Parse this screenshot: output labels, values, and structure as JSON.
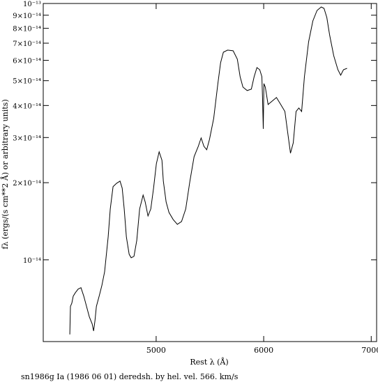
{
  "chart_data": {
    "type": "line",
    "x_label": "Rest λ (Å)",
    "y_label": "fλ (ergs/(s cm**2 Å) or arbitrary units)",
    "caption": "sn1986g Ia (1986 06 01) deredsh. by hel. vel.   566. km/s",
    "color": "#000000",
    "log_y": true,
    "xlim": [
      3950,
      7050
    ],
    "ylim": [
      4.8e-15,
      1e-13
    ],
    "xticks": [
      5000,
      6000,
      7000
    ],
    "yticks": [
      {
        "value": 1e-14,
        "label": "10⁻¹⁴"
      },
      {
        "value": 2e-14,
        "label": "2×10⁻¹⁴"
      },
      {
        "value": 3e-14,
        "label": "3×10⁻¹⁴"
      },
      {
        "value": 4e-14,
        "label": "4×10⁻¹⁴"
      },
      {
        "value": 5e-14,
        "label": "5×10⁻¹⁴"
      },
      {
        "value": 6e-14,
        "label": "6×10⁻¹⁴"
      },
      {
        "value": 7e-14,
        "label": "7×10⁻¹⁴"
      },
      {
        "value": 8e-14,
        "label": "8×10⁻¹⁴"
      },
      {
        "value": 9e-14,
        "label": "9×10⁻¹⁴"
      },
      {
        "value": 1e-13,
        "label": "10⁻¹³"
      }
    ],
    "x": [
      4197,
      4203,
      4216,
      4229,
      4249,
      4275,
      4301,
      4327,
      4353,
      4379,
      4405,
      4418,
      4431,
      4444,
      4470,
      4495,
      4521,
      4554,
      4573,
      4599,
      4632,
      4664,
      4684,
      4703,
      4723,
      4749,
      4768,
      4794,
      4820,
      4846,
      4879,
      4898,
      4924,
      4950,
      4976,
      5002,
      5028,
      5054,
      5067,
      5093,
      5119,
      5158,
      5197,
      5236,
      5275,
      5314,
      5353,
      5392,
      5418,
      5444,
      5470,
      5496,
      5535,
      5574,
      5599,
      5625,
      5664,
      5716,
      5755,
      5781,
      5807,
      5846,
      5885,
      5911,
      5937,
      5963,
      5983,
      5989,
      5996,
      6002,
      6015,
      6041,
      6080,
      6119,
      6158,
      6197,
      6223,
      6249,
      6275,
      6301,
      6327,
      6353,
      6379,
      6418,
      6457,
      6496,
      6535,
      6561,
      6587,
      6613,
      6651,
      6690,
      6716,
      6742,
      6775
    ],
    "values": [
      5.12e-15,
      6.58e-15,
      6.78e-15,
      7.22e-15,
      7.45e-15,
      7.69e-15,
      7.79e-15,
      7.22e-15,
      6.58e-15,
      5.99e-15,
      5.62e-15,
      5.28e-15,
      5.8e-15,
      6.58e-15,
      7.22e-15,
      7.93e-15,
      8.99e-15,
      1.229e-14,
      1.579e-14,
      1.929e-14,
      1.99e-14,
      2.028e-14,
      1.905e-14,
      1.579e-14,
      1.229e-14,
      1.051e-14,
      1.019e-14,
      1.032e-14,
      1.191e-14,
      1.579e-14,
      1.789e-14,
      1.681e-14,
      1.483e-14,
      1.579e-14,
      1.905e-14,
      2.371e-14,
      2.638e-14,
      2.447e-14,
      2.028e-14,
      1.681e-14,
      1.53e-14,
      1.437e-14,
      1.376e-14,
      1.411e-14,
      1.579e-14,
      2.028e-14,
      2.525e-14,
      2.773e-14,
      2.989e-14,
      2.773e-14,
      2.688e-14,
      2.952e-14,
      3.561e-14,
      4.87e-14,
      5.875e-14,
      6.454e-14,
      6.577e-14,
      6.536e-14,
      6.064e-14,
      5.183e-14,
      4.72e-14,
      4.575e-14,
      4.633e-14,
      5.183e-14,
      5.623e-14,
      5.518e-14,
      5.183e-14,
      4.298e-14,
      3.243e-14,
      4.87e-14,
      4.72e-14,
      4.036e-14,
      4.165e-14,
      4.298e-14,
      4.036e-14,
      3.792e-14,
      3.143e-14,
      2.605e-14,
      2.861e-14,
      3.792e-14,
      3.913e-14,
      3.792e-14,
      5.183e-14,
      7.088e-14,
      8.553e-14,
      9.394e-14,
      9.692e-14,
      9.572e-14,
      8.825e-14,
      7.546e-14,
      6.255e-14,
      5.518e-14,
      5.249e-14,
      5.518e-14,
      5.588e-14
    ]
  }
}
